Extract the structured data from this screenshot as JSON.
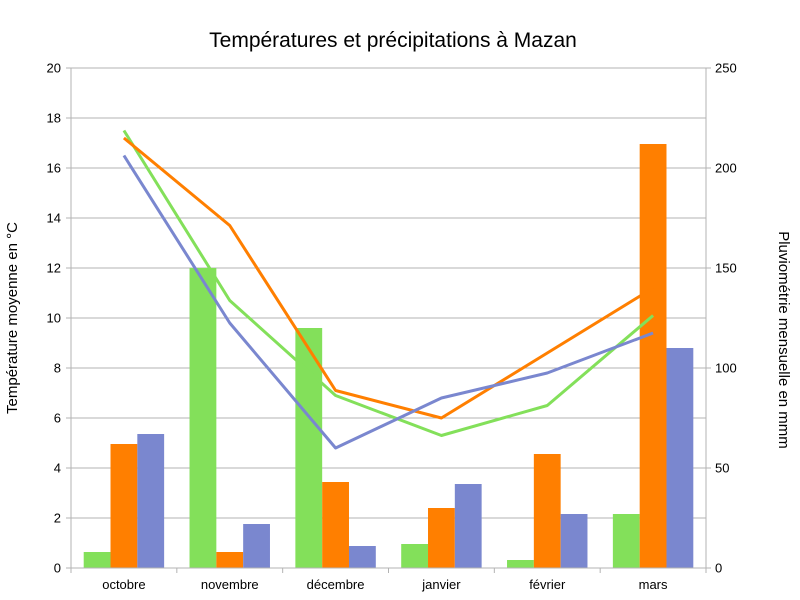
{
  "chart_data": {
    "type": "bar",
    "title": "Températures et précipitations à Mazan",
    "ylabel": "Température moyenne en °C",
    "y2label": "Pluviométrie mensuelle en mmm",
    "ylim": [
      0,
      20
    ],
    "y2lim": [
      0,
      250
    ],
    "yticks": [
      0,
      2,
      4,
      6,
      8,
      10,
      12,
      14,
      16,
      18,
      20
    ],
    "y2ticks": [
      0,
      50,
      100,
      150,
      200,
      250
    ],
    "categories": [
      "octobre",
      "novembre",
      "décembre",
      "janvier",
      "février",
      "mars"
    ],
    "grid": true,
    "legend": "none",
    "bar_series": [
      {
        "color": "#83e05a",
        "axis": "right",
        "values": [
          8,
          150,
          120,
          12,
          4,
          27
        ]
      },
      {
        "color": "#ff7f00",
        "axis": "right",
        "values": [
          62,
          8,
          43,
          30,
          57,
          212
        ]
      },
      {
        "color": "#7a87cf",
        "axis": "right",
        "values": [
          67,
          22,
          11,
          42,
          27,
          110
        ]
      }
    ],
    "line_series": [
      {
        "color": "#83e05a",
        "axis": "left",
        "values": [
          17.5,
          10.7,
          6.9,
          5.3,
          6.5,
          10.1
        ]
      },
      {
        "color": "#ff7f00",
        "axis": "left",
        "values": [
          17.2,
          13.7,
          7.1,
          6.0,
          8.6,
          11.2
        ]
      },
      {
        "color": "#7a87cf",
        "axis": "left",
        "values": [
          16.5,
          9.8,
          4.8,
          6.8,
          7.8,
          9.4
        ]
      }
    ]
  }
}
